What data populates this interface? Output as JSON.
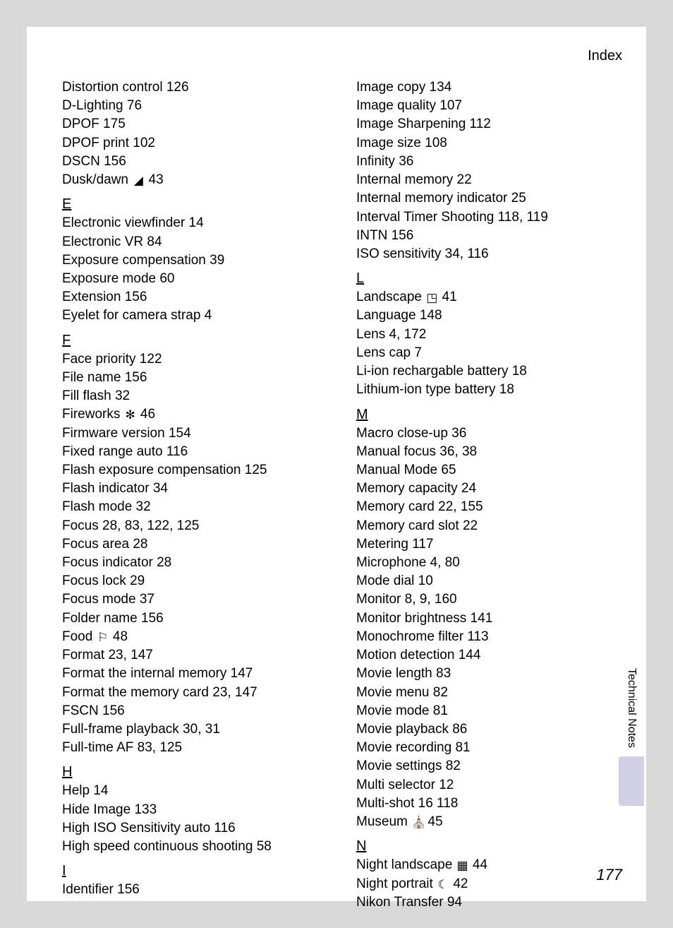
{
  "header": {
    "title": "Index"
  },
  "side": {
    "label": "Technical Notes"
  },
  "page_number": "177",
  "icons": {
    "dusk": "◢",
    "fireworks": "✻",
    "food": "⚐",
    "landscape": "◳",
    "museum": "⛪",
    "night_landscape": "▦",
    "night_portrait": "☾"
  },
  "left": [
    {
      "type": "entry",
      "text": "Distortion control 126"
    },
    {
      "type": "entry",
      "text": "D-Lighting 76"
    },
    {
      "type": "entry",
      "text": "DPOF 175"
    },
    {
      "type": "entry",
      "text": "DPOF print 102"
    },
    {
      "type": "entry",
      "text": "DSCN 156"
    },
    {
      "type": "entry",
      "pre": "Dusk/dawn ",
      "icon": "dusk",
      "post": " 43"
    },
    {
      "type": "letter",
      "text": "E"
    },
    {
      "type": "entry",
      "text": "Electronic viewfinder 14"
    },
    {
      "type": "entry",
      "text": "Electronic VR 84"
    },
    {
      "type": "entry",
      "text": "Exposure compensation 39"
    },
    {
      "type": "entry",
      "text": "Exposure mode 60"
    },
    {
      "type": "entry",
      "text": "Extension 156"
    },
    {
      "type": "entry",
      "text": "Eyelet for camera strap 4"
    },
    {
      "type": "letter",
      "text": "F"
    },
    {
      "type": "entry",
      "text": "Face priority 122"
    },
    {
      "type": "entry",
      "text": "File name 156"
    },
    {
      "type": "entry",
      "text": "Fill flash 32"
    },
    {
      "type": "entry",
      "pre": "Fireworks ",
      "icon": "fireworks",
      "post": " 46"
    },
    {
      "type": "entry",
      "text": "Firmware version 154"
    },
    {
      "type": "entry",
      "text": "Fixed range auto 116"
    },
    {
      "type": "entry",
      "text": "Flash exposure compensation 125"
    },
    {
      "type": "entry",
      "text": "Flash indicator 34"
    },
    {
      "type": "entry",
      "text": "Flash mode 32"
    },
    {
      "type": "entry",
      "text": "Focus 28, 83, 122, 125"
    },
    {
      "type": "entry",
      "text": "Focus area 28"
    },
    {
      "type": "entry",
      "text": "Focus indicator 28"
    },
    {
      "type": "entry",
      "text": "Focus lock 29"
    },
    {
      "type": "entry",
      "text": "Focus mode 37"
    },
    {
      "type": "entry",
      "text": "Folder name 156"
    },
    {
      "type": "entry",
      "pre": "Food ",
      "icon": "food",
      "post": " 48"
    },
    {
      "type": "entry",
      "text": "Format 23, 147"
    },
    {
      "type": "entry",
      "text": "Format the internal memory 147"
    },
    {
      "type": "entry",
      "text": "Format the memory card 23, 147"
    },
    {
      "type": "entry",
      "text": "FSCN 156"
    },
    {
      "type": "entry",
      "text": "Full-frame playback 30, 31"
    },
    {
      "type": "entry",
      "text": "Full-time AF 83, 125"
    },
    {
      "type": "letter",
      "text": "H"
    },
    {
      "type": "entry",
      "text": "Help 14"
    },
    {
      "type": "entry",
      "text": "Hide Image 133"
    },
    {
      "type": "entry",
      "text": "High ISO Sensitivity auto 116"
    },
    {
      "type": "entry",
      "text": "High speed continuous shooting 58"
    },
    {
      "type": "letter",
      "text": "I"
    },
    {
      "type": "entry",
      "text": "Identifier 156"
    }
  ],
  "right": [
    {
      "type": "entry",
      "text": "Image copy 134"
    },
    {
      "type": "entry",
      "text": "Image quality 107"
    },
    {
      "type": "entry",
      "text": "Image Sharpening 112"
    },
    {
      "type": "entry",
      "text": "Image size 108"
    },
    {
      "type": "entry",
      "text": "Infinity 36"
    },
    {
      "type": "entry",
      "text": "Internal memory 22"
    },
    {
      "type": "entry",
      "text": "Internal memory indicator 25"
    },
    {
      "type": "entry",
      "text": "Interval Timer Shooting 118, 119"
    },
    {
      "type": "entry",
      "text": "INTN 156"
    },
    {
      "type": "entry",
      "text": "ISO sensitivity 34, 116"
    },
    {
      "type": "letter",
      "text": "L"
    },
    {
      "type": "entry",
      "pre": "Landscape ",
      "icon": "landscape",
      "post": " 41"
    },
    {
      "type": "entry",
      "text": "Language 148"
    },
    {
      "type": "entry",
      "text": "Lens 4, 172"
    },
    {
      "type": "entry",
      "text": "Lens cap 7"
    },
    {
      "type": "entry",
      "text": "Li-ion rechargable battery 18"
    },
    {
      "type": "entry",
      "text": "Lithium-ion type battery 18"
    },
    {
      "type": "letter",
      "text": "M"
    },
    {
      "type": "entry",
      "text": "Macro close-up 36"
    },
    {
      "type": "entry",
      "text": "Manual focus 36, 38"
    },
    {
      "type": "entry",
      "text": "Manual Mode 65"
    },
    {
      "type": "entry",
      "text": "Memory capacity 24"
    },
    {
      "type": "entry",
      "text": "Memory card 22, 155"
    },
    {
      "type": "entry",
      "text": "Memory card slot 22"
    },
    {
      "type": "entry",
      "text": "Metering 117"
    },
    {
      "type": "entry",
      "text": "Microphone 4, 80"
    },
    {
      "type": "entry",
      "text": "Mode dial 10"
    },
    {
      "type": "entry",
      "text": "Monitor 8, 9, 160"
    },
    {
      "type": "entry",
      "text": "Monitor brightness 141"
    },
    {
      "type": "entry",
      "text": "Monochrome filter 113"
    },
    {
      "type": "entry",
      "text": "Motion detection 144"
    },
    {
      "type": "entry",
      "text": "Movie length 83"
    },
    {
      "type": "entry",
      "text": "Movie menu 82"
    },
    {
      "type": "entry",
      "text": "Movie mode 81"
    },
    {
      "type": "entry",
      "text": "Movie playback 86"
    },
    {
      "type": "entry",
      "text": "Movie recording 81"
    },
    {
      "type": "entry",
      "text": "Movie settings 82"
    },
    {
      "type": "entry",
      "text": "Multi selector 12"
    },
    {
      "type": "entry",
      "text": "Multi-shot 16 118"
    },
    {
      "type": "entry",
      "pre": "Museum ",
      "icon": "museum",
      "post": " 45"
    },
    {
      "type": "letter",
      "text": "N"
    },
    {
      "type": "entry",
      "pre": "Night landscape ",
      "icon": "night_landscape",
      "post": " 44"
    },
    {
      "type": "entry",
      "pre": "Night portrait ",
      "icon": "night_portrait",
      "post": " 42"
    },
    {
      "type": "entry",
      "text": "Nikon Transfer 94"
    }
  ]
}
